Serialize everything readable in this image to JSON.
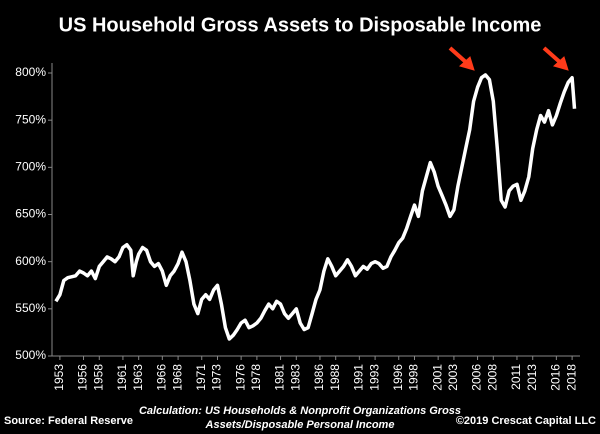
{
  "chart_data": {
    "type": "line",
    "title": "US Household Gross Assets to Disposable Income",
    "source": "Source: Federal Reserve",
    "note": [
      "Calculation: US Households & Nonprofit Organizations Gross",
      "Assets/Disposable Personal Income"
    ],
    "credit": "©2019 Crescat Capital LLC",
    "x": [
      1952.5,
      1953,
      1953.5,
      1954,
      1955,
      1955.5,
      1956,
      1956.5,
      1957,
      1957.5,
      1958,
      1958.5,
      1959,
      1959.5,
      1960,
      1960.5,
      1961,
      1961.5,
      1962,
      1962.3,
      1962.7,
      1963,
      1963.5,
      1964,
      1964.5,
      1965,
      1965.5,
      1966,
      1966.5,
      1967,
      1967.5,
      1968,
      1968.5,
      1969,
      1969.5,
      1970,
      1970.5,
      1971,
      1971.5,
      1972,
      1972.5,
      1973,
      1973.5,
      1974,
      1974.5,
      1975,
      1975.5,
      1976,
      1976.5,
      1977,
      1977.5,
      1978,
      1978.5,
      1979,
      1979.5,
      1980,
      1980.5,
      1981,
      1981.5,
      1982,
      1982.5,
      1983,
      1983.5,
      1984,
      1984.5,
      1985,
      1985.5,
      1986,
      1986.5,
      1987,
      1987.5,
      1988,
      1988.5,
      1989,
      1989.5,
      1990,
      1990.5,
      1991,
      1991.5,
      1992,
      1992.5,
      1993,
      1993.5,
      1994,
      1994.5,
      1995,
      1995.5,
      1996,
      1996.5,
      1997,
      1997.5,
      1998,
      1998.5,
      1999,
      1999.5,
      2000,
      2000.5,
      2001,
      2001.5,
      2002,
      2002.5,
      2003,
      2003.5,
      2004,
      2004.5,
      2005,
      2005.5,
      2006,
      2006.5,
      2007,
      2007.5,
      2008,
      2008.5,
      2009,
      2009.5,
      2010,
      2010.5,
      2011,
      2011.5,
      2012,
      2012.5,
      2013,
      2013.5,
      2014,
      2014.5,
      2015,
      2015.5,
      2016,
      2016.5,
      2017,
      2017.5,
      2018,
      2018.3
    ],
    "series": [
      {
        "name": "Gross Assets to Disposable Income",
        "color": "#ffffff",
        "values": [
          558,
          565,
          580,
          583,
          585,
          590,
          588,
          585,
          590,
          582,
          595,
          600,
          605,
          603,
          600,
          605,
          615,
          618,
          612,
          585,
          600,
          608,
          615,
          612,
          600,
          595,
          598,
          590,
          575,
          585,
          590,
          598,
          610,
          600,
          580,
          555,
          545,
          560,
          565,
          560,
          570,
          575,
          555,
          530,
          518,
          522,
          528,
          535,
          538,
          530,
          532,
          535,
          540,
          548,
          555,
          550,
          558,
          555,
          545,
          540,
          545,
          550,
          535,
          528,
          530,
          545,
          560,
          570,
          590,
          603,
          595,
          585,
          590,
          595,
          602,
          595,
          585,
          590,
          595,
          592,
          598,
          600,
          598,
          593,
          595,
          605,
          612,
          620,
          625,
          635,
          648,
          660,
          648,
          675,
          690,
          705,
          695,
          680,
          670,
          660,
          648,
          655,
          680,
          700,
          720,
          740,
          770,
          785,
          795,
          798,
          793,
          770,
          720,
          665,
          658,
          675,
          680,
          682,
          665,
          675,
          690,
          720,
          740,
          755,
          748,
          760,
          745,
          755,
          768,
          780,
          790,
          795,
          762
        ]
      }
    ],
    "xlim": [
      1952,
      2019
    ],
    "xticks": [
      1953,
      1956,
      1958,
      1961,
      1963,
      1966,
      1968,
      1971,
      1973,
      1976,
      1978,
      1981,
      1983,
      1986,
      1988,
      1991,
      1993,
      1996,
      1998,
      2001,
      2003,
      2006,
      2008,
      2011,
      2013,
      2016,
      2018
    ],
    "ylim": [
      500,
      800
    ],
    "yticks": [
      {
        "value": 500,
        "label": "500%"
      },
      {
        "value": 550,
        "label": "550%"
      },
      {
        "value": 600,
        "label": "600%"
      },
      {
        "value": 650,
        "label": "650%"
      },
      {
        "value": 700,
        "label": "700%"
      },
      {
        "value": 750,
        "label": "750%"
      },
      {
        "value": 800,
        "label": "800%"
      }
    ],
    "grid": false
  }
}
